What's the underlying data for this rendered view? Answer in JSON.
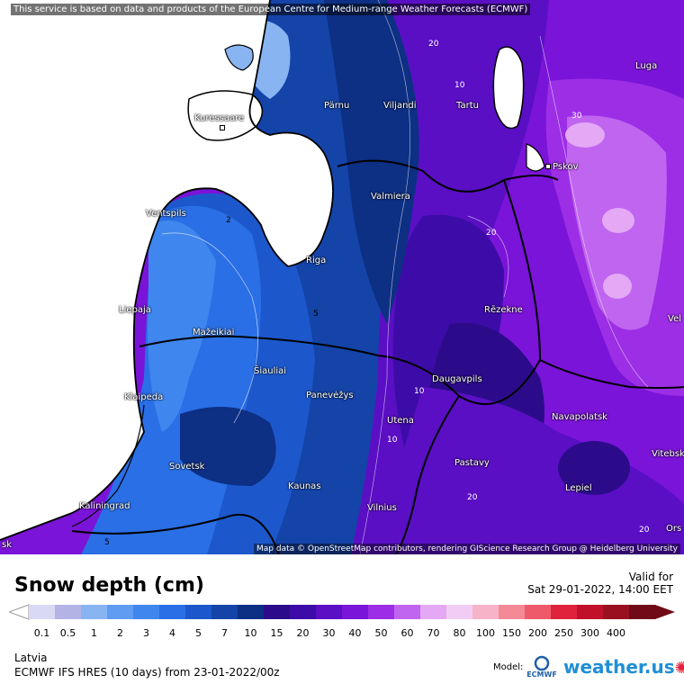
{
  "attribution_top": "This service is based on data and products of the European Centre for Medium-range Weather Forecasts (ECMWF)",
  "attribution_bottom": "Map data © OpenStreetMap contributors, rendering GIScience Research Group @ Heidelberg University",
  "title": "Snow depth (cm)",
  "valid_label": "Valid for",
  "valid_time": "Sat 29-01-2022, 14:00 EET",
  "region": "Latvia",
  "model_line": "ECMWF IFS HRES (10 days) from 23-01-2022/00z",
  "model_label": "Model:",
  "brand": "weather.us",
  "ecmwf_label": "ECMWF",
  "legend": {
    "ticks": [
      "0.1",
      "0.5",
      "1",
      "2",
      "3",
      "4",
      "5",
      "7",
      "10",
      "15",
      "20",
      "30",
      "40",
      "50",
      "60",
      "70",
      "80",
      "100",
      "150",
      "200",
      "250",
      "300",
      "400"
    ],
    "colors": [
      "#d9d9f5",
      "#b3b3e6",
      "#88b4f2",
      "#5f9cf2",
      "#3f86ee",
      "#2a6fe6",
      "#1c58cc",
      "#1444a8",
      "#0d2f84",
      "#2c0b8a",
      "#3d0ca8",
      "#5a0fc4",
      "#7a14d8",
      "#9c2ee6",
      "#c065f0",
      "#e4a8f5",
      "#f3ccf3",
      "#f7b3c8",
      "#f38a96",
      "#ee5a6a",
      "#e0223c",
      "#c0102a",
      "#991020",
      "#700a16"
    ]
  },
  "cities": [
    {
      "name": "Kuressaare"
    },
    {
      "name": "Pärnu"
    },
    {
      "name": "Viljandi"
    },
    {
      "name": "Tartu"
    },
    {
      "name": "Luga"
    },
    {
      "name": "Pskov"
    },
    {
      "name": "Valmiera"
    },
    {
      "name": "Ventspils"
    },
    {
      "name": "Riga"
    },
    {
      "name": "Liepaja"
    },
    {
      "name": "Rēzekne"
    },
    {
      "name": "Mažeikiai"
    },
    {
      "name": "Šiauliai"
    },
    {
      "name": "Klaipeda"
    },
    {
      "name": "Panevėžys"
    },
    {
      "name": "Daugavpils"
    },
    {
      "name": "Utena"
    },
    {
      "name": "Navapolatsk"
    },
    {
      "name": "Sovetsk"
    },
    {
      "name": "Pastavy"
    },
    {
      "name": "Lepiel"
    },
    {
      "name": "Kaunas"
    },
    {
      "name": "Kaliningrad"
    },
    {
      "name": "Vilnius"
    },
    {
      "name": "Vitebsk"
    },
    {
      "name": "Vel"
    },
    {
      "name": "Ors"
    },
    {
      "name": "sk"
    }
  ],
  "contour_labels": [
    "2",
    "5",
    "10",
    "20",
    "30",
    "20",
    "10",
    "5",
    "20",
    "10",
    "20"
  ]
}
